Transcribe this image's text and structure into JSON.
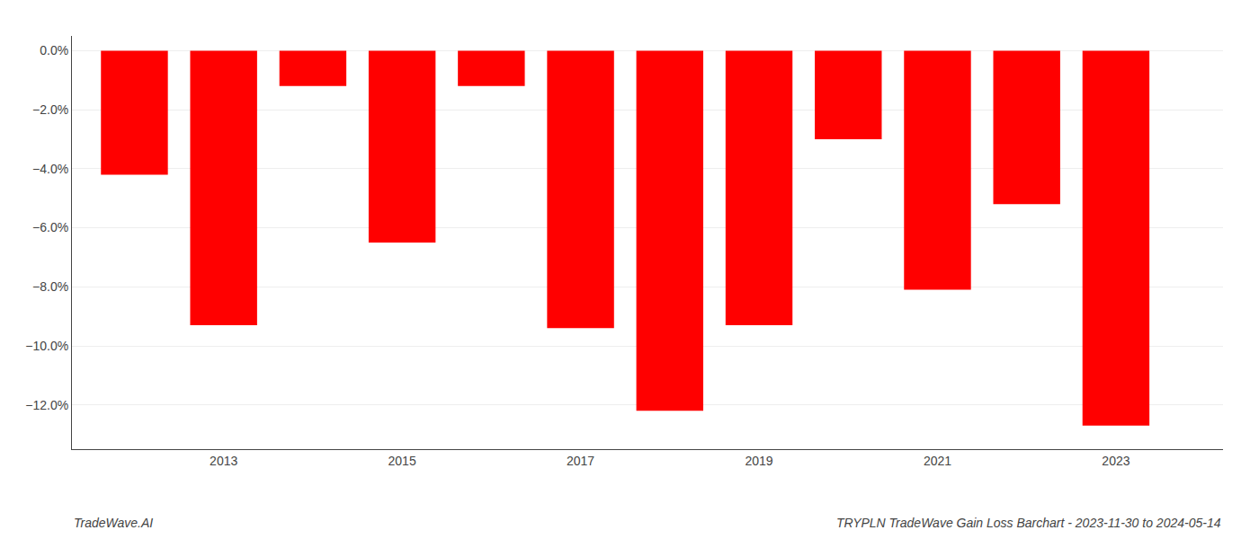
{
  "chart_data": {
    "type": "bar",
    "title": "TRYPLN TradeWave Gain Loss Barchart - 2023-11-30 to 2024-05-14",
    "annotations": [
      "TradeWave.AI"
    ],
    "x": [
      2012,
      2013,
      2014,
      2015,
      2016,
      2017,
      2018,
      2019,
      2020,
      2021,
      2022,
      2023
    ],
    "values": [
      -4.2,
      -9.3,
      -1.2,
      -6.5,
      -1.2,
      -9.4,
      -12.2,
      -9.3,
      -3.0,
      -8.1,
      -5.2,
      -12.7
    ],
    "color": "#ff0000",
    "xlim": [
      2011.3,
      2024.2
    ],
    "xticks": [
      2013,
      2015,
      2017,
      2019,
      2021,
      2023
    ],
    "ylim": [
      -13.5,
      0.5
    ],
    "yticks": [
      {
        "value": 0.0,
        "label": "0.0%"
      },
      {
        "value": -2.0,
        "label": "−2.0%"
      },
      {
        "value": -4.0,
        "label": "−4.0%"
      },
      {
        "value": -6.0,
        "label": "−6.0%"
      },
      {
        "value": -8.0,
        "label": "−8.0%"
      },
      {
        "value": -10.0,
        "label": "−10.0%"
      },
      {
        "value": -12.0,
        "label": "−12.0%"
      }
    ],
    "grid": true
  }
}
